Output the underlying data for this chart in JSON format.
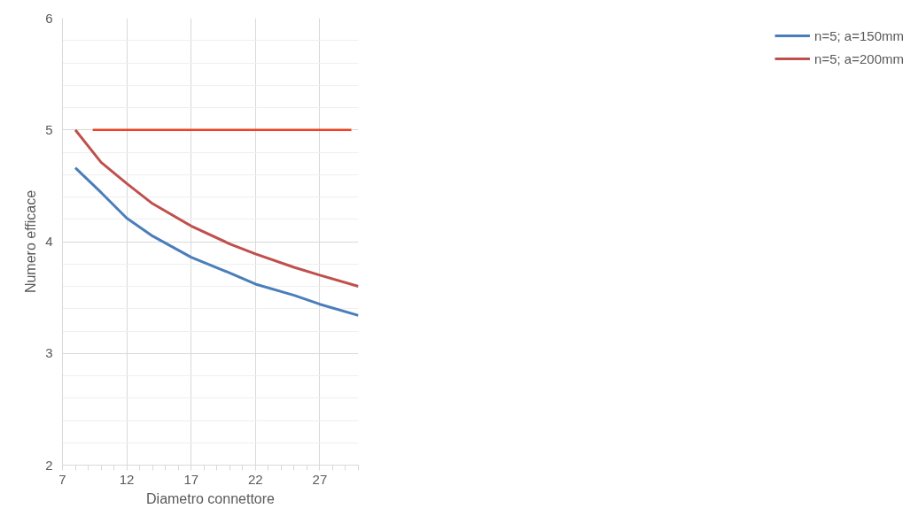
{
  "chart_data": {
    "type": "line",
    "xlabel": "Diametro connettore",
    "ylabel": "Numero efficace",
    "x": [
      8,
      10,
      12,
      14,
      17,
      20,
      22,
      25,
      27,
      30
    ],
    "series": [
      {
        "name": "n=5; a=150mm",
        "color": "#4a7ebb",
        "values": [
          4.66,
          4.44,
          4.21,
          4.05,
          3.86,
          3.72,
          3.62,
          3.52,
          3.44,
          3.34
        ]
      },
      {
        "name": "n=5; a=200mm",
        "color": "#c0504d",
        "values": [
          5.0,
          4.71,
          4.52,
          4.34,
          4.14,
          3.98,
          3.89,
          3.77,
          3.7,
          3.6
        ]
      },
      {
        "color": "#f04020",
        "x": [
          9.35,
          29.45
        ],
        "values": [
          5.0,
          5.0
        ]
      }
    ],
    "xlim": [
      7,
      30
    ],
    "ylim": [
      2,
      6
    ],
    "xticks": [
      7,
      {
        "value": 8,
        "label": null
      },
      {
        "value": 9,
        "label": null
      },
      {
        "value": 10,
        "label": null
      },
      {
        "value": 11,
        "label": null
      },
      12,
      {
        "value": 13,
        "label": null
      },
      {
        "value": 14,
        "label": null
      },
      {
        "value": 15,
        "label": null
      },
      {
        "value": 16,
        "label": null
      },
      17,
      {
        "value": 18,
        "label": null
      },
      {
        "value": 19,
        "label": null
      },
      {
        "value": 20,
        "label": null
      },
      {
        "value": 21,
        "label": null
      },
      22,
      {
        "value": 23,
        "label": null
      },
      {
        "value": 24,
        "label": null
      },
      {
        "value": 25,
        "label": null
      },
      {
        "value": 26,
        "label": null
      },
      27,
      {
        "value": 28,
        "label": null
      },
      {
        "value": 29,
        "label": null
      },
      {
        "value": 30,
        "label": null
      }
    ],
    "yticks": [
      2,
      {
        "value": 2.2,
        "label": null
      },
      {
        "value": 2.4,
        "label": null
      },
      {
        "value": 2.6,
        "label": null
      },
      {
        "value": 2.8,
        "label": null
      },
      3,
      {
        "value": 3.2,
        "label": null
      },
      {
        "value": 3.4,
        "label": null
      },
      {
        "value": 3.6,
        "label": null
      },
      {
        "value": 3.8,
        "label": null
      },
      4,
      {
        "value": 4.2,
        "label": null
      },
      {
        "value": 4.4,
        "label": null
      },
      {
        "value": 4.6,
        "label": null
      },
      {
        "value": 4.8,
        "label": null
      },
      5,
      {
        "value": 5.2,
        "label": null
      },
      {
        "value": 5.4,
        "label": null
      },
      {
        "value": 5.6,
        "label": null
      },
      {
        "value": 5.8,
        "label": null
      },
      6
    ],
    "grid": true,
    "legend": "right",
    "marker": "none",
    "line_style": "solid"
  }
}
